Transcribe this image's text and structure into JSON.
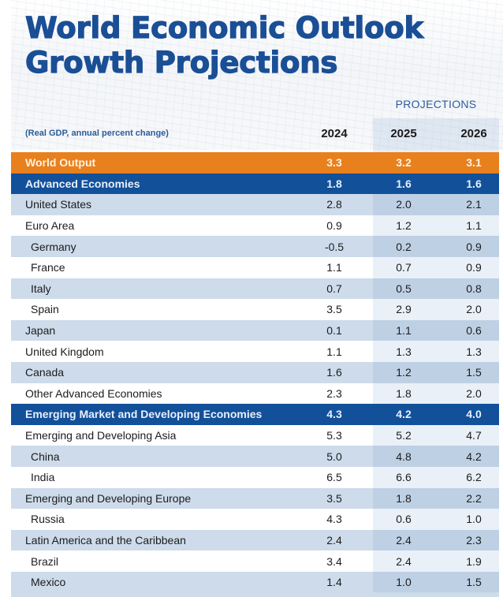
{
  "title_lines": [
    "World Economic Outlook",
    "Growth Projections"
  ],
  "projections_label": "PROJECTIONS",
  "subtitle": "(Real GDP, annual percent change)",
  "years": [
    "2024",
    "2025",
    "2026"
  ],
  "colors": {
    "title": "#1a4f96",
    "world_row": "#e8801e",
    "group_row": "#12509a",
    "shaded_row": "#cddbeb"
  },
  "rows": [
    {
      "name": "World Output",
      "type": "world",
      "values": [
        "3.3",
        "3.2",
        "3.1"
      ]
    },
    {
      "name": "Advanced Economies",
      "type": "group",
      "values": [
        "1.8",
        "1.6",
        "1.6"
      ]
    },
    {
      "name": "United States",
      "type": "region",
      "values": [
        "2.8",
        "2.0",
        "2.1"
      ]
    },
    {
      "name": "Euro Area",
      "type": "region",
      "values": [
        "0.9",
        "1.2",
        "1.1"
      ]
    },
    {
      "name": "Germany",
      "type": "country",
      "values": [
        "-0.5",
        "0.2",
        "0.9"
      ]
    },
    {
      "name": "France",
      "type": "country",
      "values": [
        "1.1",
        "0.7",
        "0.9"
      ]
    },
    {
      "name": "Italy",
      "type": "country",
      "values": [
        "0.7",
        "0.5",
        "0.8"
      ]
    },
    {
      "name": "Spain",
      "type": "country",
      "values": [
        "3.5",
        "2.9",
        "2.0"
      ]
    },
    {
      "name": "Japan",
      "type": "region",
      "values": [
        "0.1",
        "1.1",
        "0.6"
      ]
    },
    {
      "name": "United Kingdom",
      "type": "region",
      "values": [
        "1.1",
        "1.3",
        "1.3"
      ]
    },
    {
      "name": "Canada",
      "type": "region",
      "values": [
        "1.6",
        "1.2",
        "1.5"
      ]
    },
    {
      "name": "Other Advanced Economies",
      "type": "region",
      "values": [
        "2.3",
        "1.8",
        "2.0"
      ]
    },
    {
      "name": "Emerging Market and Developing Economies",
      "type": "group",
      "values": [
        "4.3",
        "4.2",
        "4.0"
      ]
    },
    {
      "name": "Emerging and Developing Asia",
      "type": "region",
      "values": [
        "5.3",
        "5.2",
        "4.7"
      ]
    },
    {
      "name": "China",
      "type": "country",
      "values": [
        "5.0",
        "4.8",
        "4.2"
      ]
    },
    {
      "name": "India",
      "type": "country",
      "values": [
        "6.5",
        "6.6",
        "6.2"
      ]
    },
    {
      "name": "Emerging and Developing Europe",
      "type": "region",
      "values": [
        "3.5",
        "1.8",
        "2.2"
      ]
    },
    {
      "name": "Russia",
      "type": "country",
      "values": [
        "4.3",
        "0.6",
        "1.0"
      ]
    },
    {
      "name": "Latin America and the Caribbean",
      "type": "region",
      "values": [
        "2.4",
        "2.4",
        "2.3"
      ]
    },
    {
      "name": "Brazil",
      "type": "country",
      "values": [
        "3.4",
        "2.4",
        "1.9"
      ]
    },
    {
      "name": "Mexico",
      "type": "country",
      "values": [
        "1.4",
        "1.0",
        "1.5"
      ]
    }
  ]
}
